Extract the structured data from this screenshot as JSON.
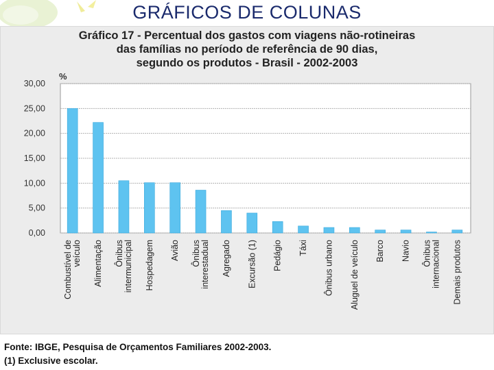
{
  "slide": {
    "title": "GRÁFICOS DE COLUNAS"
  },
  "colors": {
    "bar": "#5ec3f0",
    "bar_edge": "#3aa9dd",
    "grid": "#b0b0b0",
    "plot_bg": "#ffffff",
    "title": "#1a2a6c"
  },
  "chart_data": {
    "type": "bar",
    "title_lines": [
      "Gráfico 17 - Percentual dos gastos com viagens não-rotineiras",
      "das famílias no período de referência de 90 dias,",
      "segundo os produtos - Brasil - 2002-2003"
    ],
    "ylabel": "%",
    "xlabel": "",
    "ylim": [
      0,
      30
    ],
    "yticks": [
      "0,00",
      "5,00",
      "10,00",
      "15,00",
      "20,00",
      "25,00",
      "30,00"
    ],
    "grid": true,
    "categories": [
      [
        "Combustível de",
        "veículo"
      ],
      [
        "Alimentação"
      ],
      [
        "Ônibus",
        "intermunicipal"
      ],
      [
        "Hospedagem"
      ],
      [
        "Avião"
      ],
      [
        "Ônibus",
        "interestadual"
      ],
      [
        "Agregado"
      ],
      [
        "Excursão (1)"
      ],
      [
        "Pedágio"
      ],
      [
        "Táxi"
      ],
      [
        "Ônibus urbano"
      ],
      [
        "Aluguel de veículo"
      ],
      [
        "Barco"
      ],
      [
        "Navio"
      ],
      [
        "Ônibus",
        "internacional"
      ],
      [
        "Demais produtos"
      ]
    ],
    "values": [
      25.0,
      22.2,
      10.5,
      10.1,
      10.1,
      8.6,
      4.5,
      4.0,
      2.3,
      1.4,
      1.1,
      1.1,
      0.6,
      0.6,
      0.2,
      0.6
    ]
  },
  "footer": {
    "source": "Fonte: IBGE, Pesquisa de Orçamentos Familiares 2002-2003.",
    "note": "(1) Exclusive escolar."
  }
}
